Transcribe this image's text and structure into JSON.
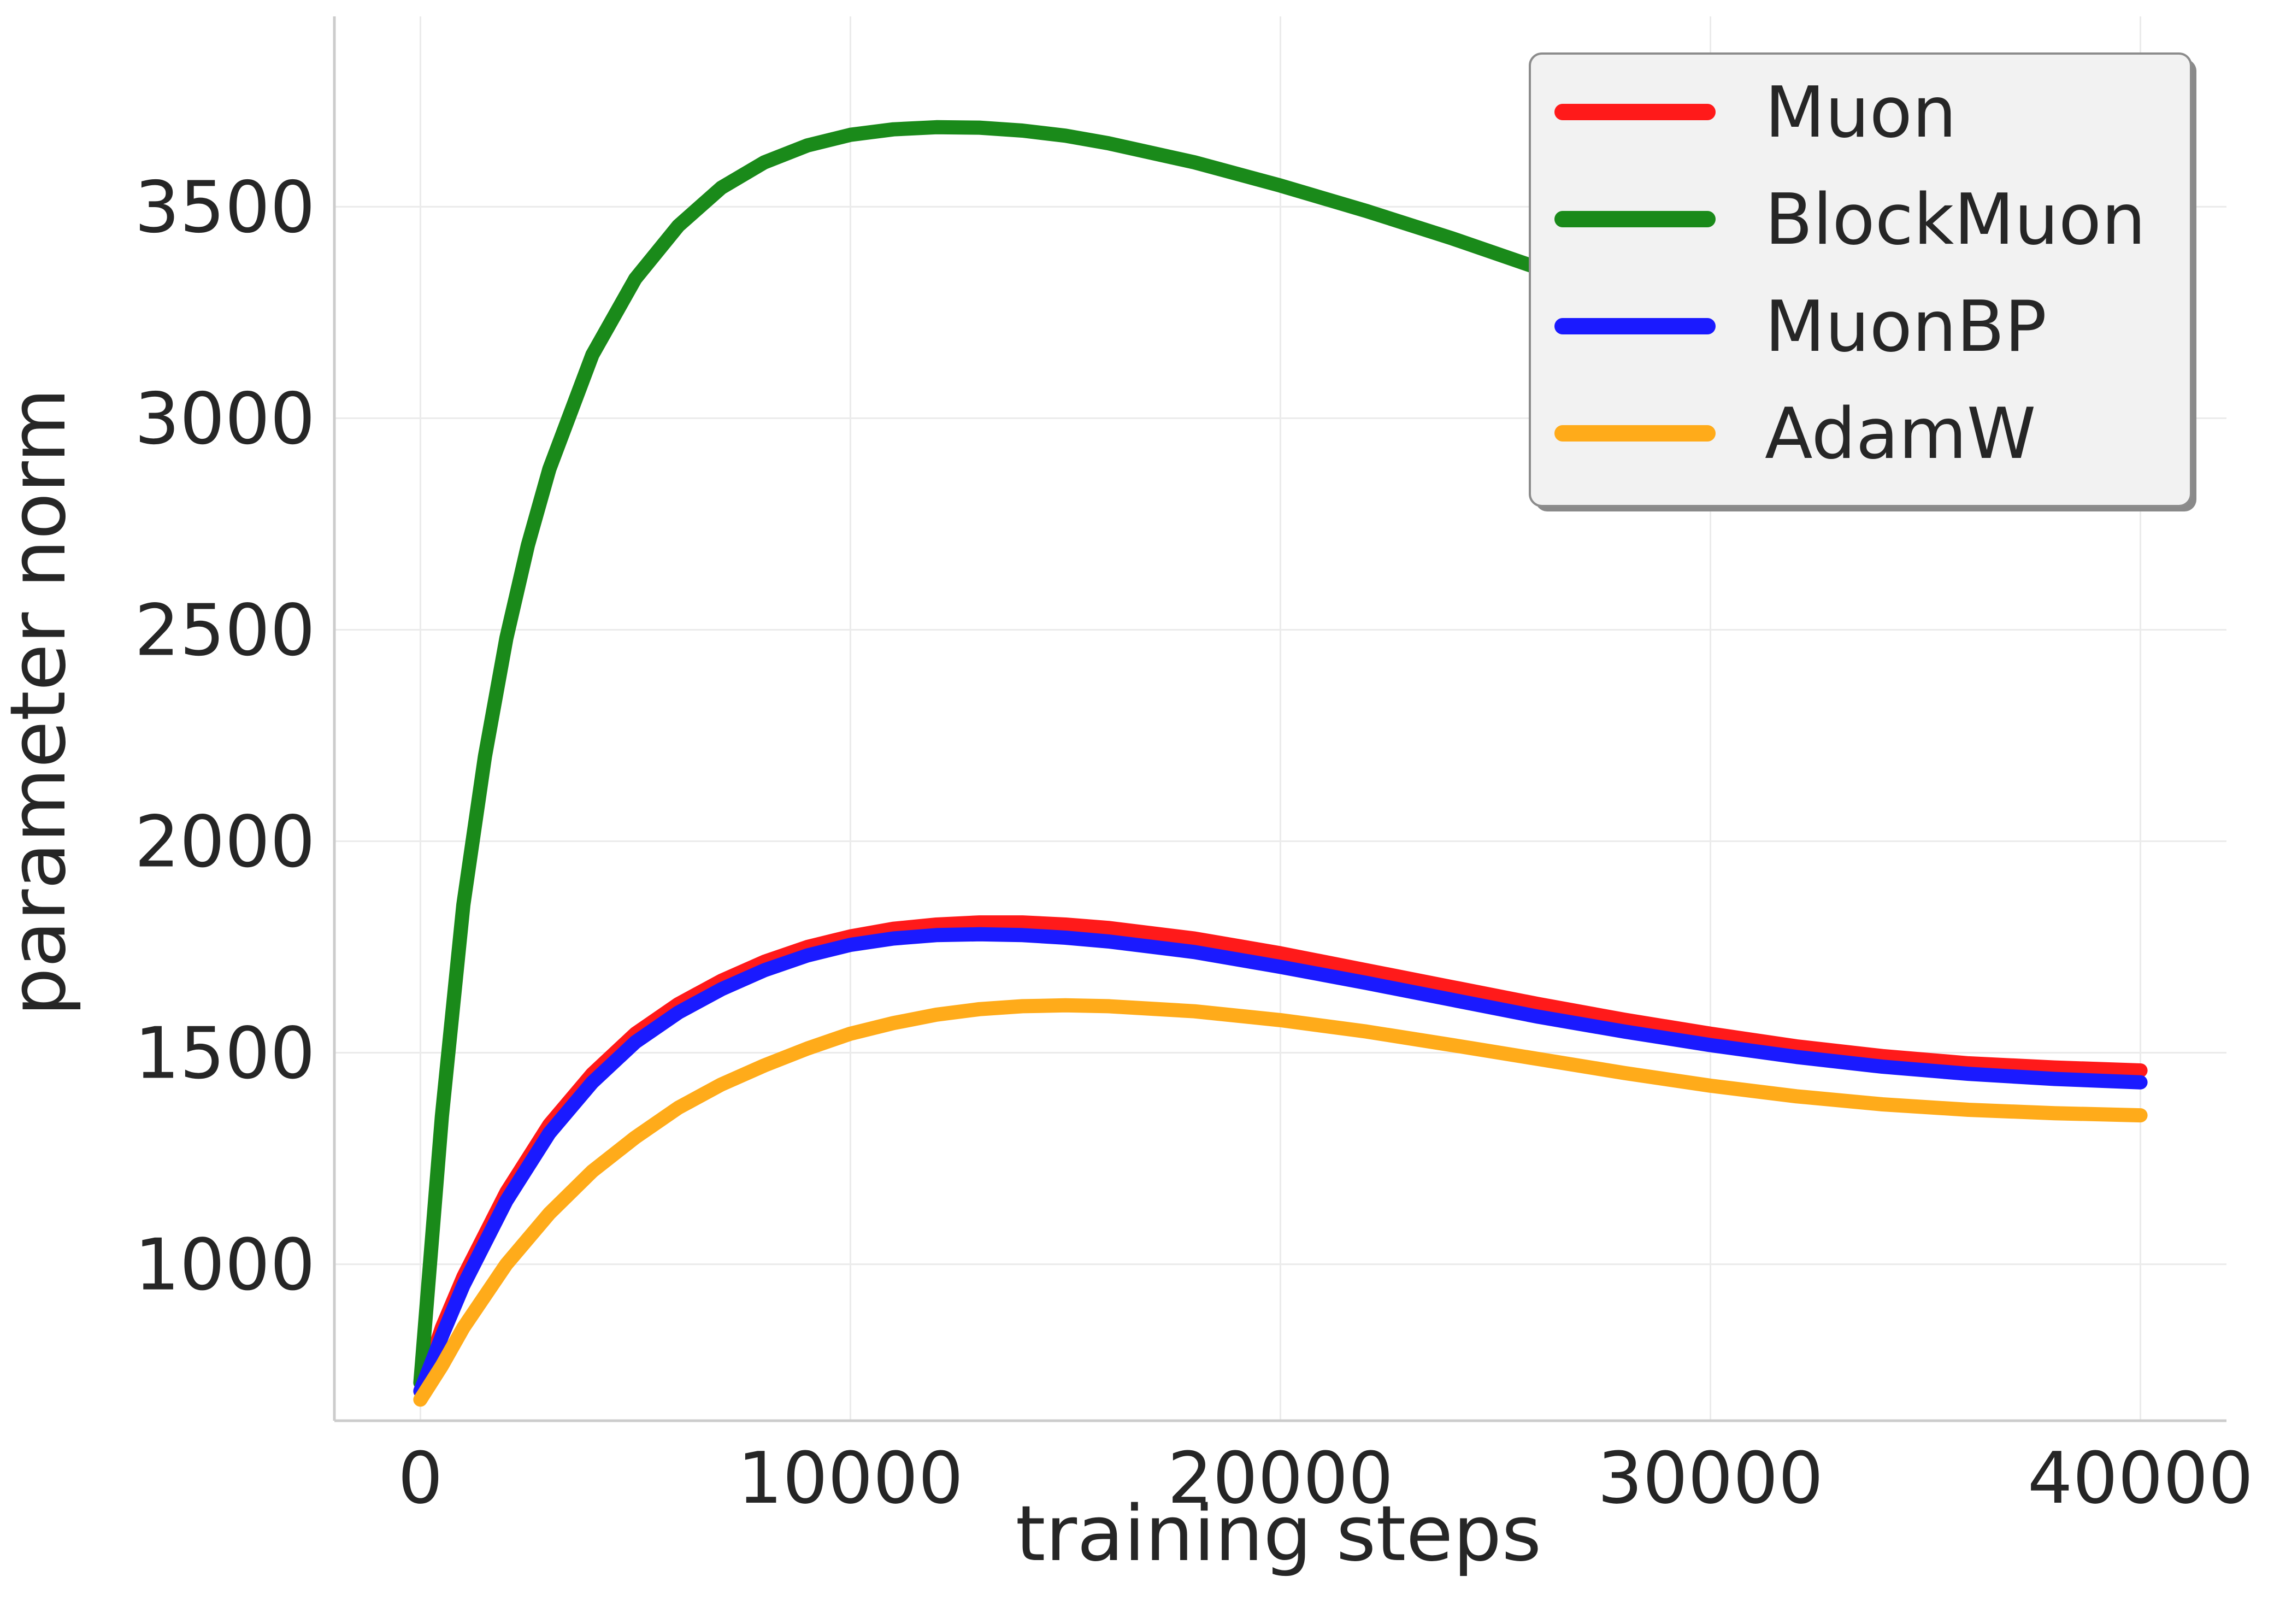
{
  "chart_data": {
    "type": "line",
    "xlabel": "training steps",
    "ylabel": "parameter norm",
    "xlim": [
      -2000,
      42000
    ],
    "ylim": [
      630,
      3950
    ],
    "xticks": [
      0,
      10000,
      20000,
      30000,
      40000
    ],
    "yticks": [
      1000,
      1500,
      2000,
      2500,
      3000,
      3500
    ],
    "grid": true,
    "legend_position": "top-right",
    "series": [
      {
        "name": "Muon",
        "color": "#ff1a1a",
        "x": [
          0,
          500,
          1000,
          2000,
          3000,
          4000,
          5000,
          6000,
          7000,
          8000,
          9000,
          10000,
          11000,
          12000,
          13000,
          14000,
          15000,
          16000,
          18000,
          20000,
          22000,
          24000,
          26000,
          28000,
          30000,
          32000,
          34000,
          36000,
          38000,
          40000
        ],
        "y": [
          700,
          850,
          970,
          1170,
          1330,
          1450,
          1545,
          1615,
          1670,
          1715,
          1750,
          1775,
          1793,
          1803,
          1808,
          1808,
          1803,
          1795,
          1770,
          1735,
          1695,
          1655,
          1615,
          1578,
          1545,
          1515,
          1492,
          1475,
          1465,
          1458
        ]
      },
      {
        "name": "BlockMuon",
        "color": "#1a8a1a",
        "x": [
          0,
          500,
          1000,
          1500,
          2000,
          2500,
          3000,
          4000,
          5000,
          6000,
          7000,
          8000,
          9000,
          10000,
          11000,
          12000,
          13000,
          14000,
          15000,
          16000,
          18000,
          20000,
          22000,
          24000,
          26000,
          28000,
          30000,
          32000,
          34000,
          36000,
          38000,
          40000
        ],
        "y": [
          720,
          1350,
          1850,
          2200,
          2480,
          2700,
          2880,
          3150,
          3330,
          3455,
          3545,
          3605,
          3645,
          3670,
          3683,
          3688,
          3687,
          3680,
          3668,
          3650,
          3605,
          3550,
          3490,
          3425,
          3355,
          3285,
          3215,
          3148,
          3090,
          3040,
          3005,
          2985
        ]
      },
      {
        "name": "MuonBP",
        "color": "#1a1aff",
        "x": [
          0,
          500,
          1000,
          2000,
          3000,
          4000,
          5000,
          6000,
          7000,
          8000,
          9000,
          10000,
          11000,
          12000,
          13000,
          14000,
          15000,
          16000,
          18000,
          20000,
          22000,
          24000,
          26000,
          28000,
          30000,
          32000,
          34000,
          36000,
          38000,
          40000
        ],
        "y": [
          700,
          830,
          950,
          1150,
          1310,
          1430,
          1525,
          1595,
          1650,
          1695,
          1730,
          1755,
          1770,
          1778,
          1780,
          1778,
          1772,
          1763,
          1738,
          1703,
          1665,
          1625,
          1585,
          1550,
          1518,
          1490,
          1467,
          1450,
          1438,
          1430
        ]
      },
      {
        "name": "AdamW",
        "color": "#ffab1a",
        "x": [
          0,
          500,
          1000,
          2000,
          3000,
          4000,
          5000,
          6000,
          7000,
          8000,
          9000,
          10000,
          11000,
          12000,
          13000,
          14000,
          15000,
          16000,
          18000,
          20000,
          22000,
          24000,
          26000,
          28000,
          30000,
          32000,
          34000,
          36000,
          38000,
          40000
        ],
        "y": [
          680,
          760,
          850,
          1000,
          1120,
          1220,
          1300,
          1370,
          1425,
          1470,
          1510,
          1545,
          1570,
          1590,
          1603,
          1610,
          1612,
          1610,
          1598,
          1577,
          1550,
          1518,
          1485,
          1452,
          1422,
          1397,
          1378,
          1365,
          1357,
          1352
        ]
      }
    ]
  }
}
